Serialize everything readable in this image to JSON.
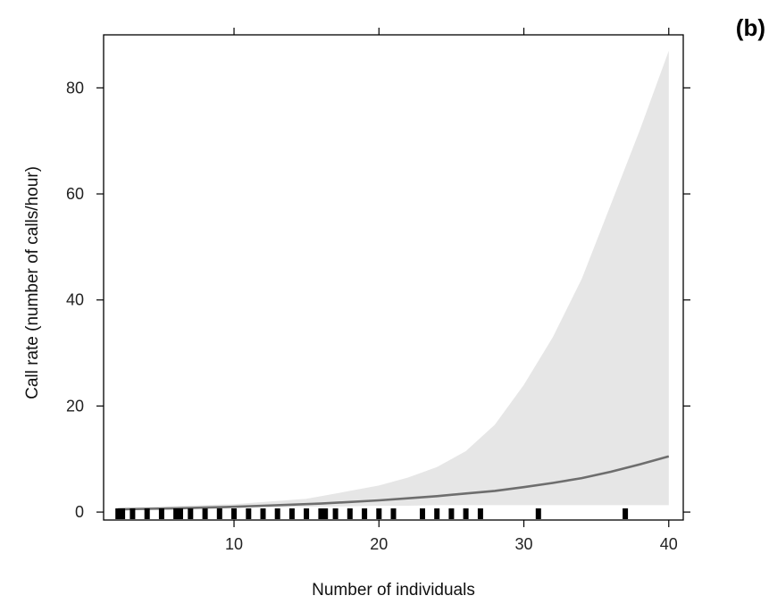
{
  "panel_label": "(b)",
  "chart_data": {
    "type": "line",
    "xlabel": "Number of individuals",
    "ylabel": "Call rate (number of calls/hour)",
    "xlim": [
      1,
      41
    ],
    "ylim": [
      -1.5,
      90
    ],
    "x_ticks": [
      10,
      20,
      30,
      40
    ],
    "x_tick_labels": [
      "10",
      "20",
      "30",
      "40"
    ],
    "y_ticks": [
      0,
      20,
      40,
      60,
      80
    ],
    "y_tick_labels": [
      "0",
      "20",
      "40",
      "60",
      "80"
    ],
    "grid": false,
    "colors": {
      "line": "#6e6e6e",
      "band": "#e6e6e6",
      "rug": "#000000"
    },
    "series": [
      {
        "x": [
          2,
          4,
          6,
          8,
          10,
          12,
          14,
          16,
          18,
          20,
          22,
          24,
          26,
          28,
          30,
          32,
          34,
          36,
          38,
          40
        ],
        "y": [
          0.5,
          0.6,
          0.7,
          0.85,
          1.0,
          1.2,
          1.4,
          1.6,
          1.9,
          2.2,
          2.6,
          3.0,
          3.5,
          4.0,
          4.7,
          5.5,
          6.4,
          7.6,
          9.0,
          10.5
        ]
      }
    ],
    "confidence_band": {
      "x": [
        2,
        10,
        15,
        18,
        20,
        22,
        24,
        26,
        28,
        30,
        32,
        34,
        36,
        38,
        40
      ],
      "lower": [
        0.3,
        0.8,
        1.0,
        1.1,
        1.2,
        1.2,
        1.3,
        1.3,
        1.3,
        1.3,
        1.3,
        1.3,
        1.3,
        1.3,
        1.3
      ],
      "upper": [
        0.8,
        1.5,
        2.5,
        4.0,
        5.0,
        6.5,
        8.5,
        11.5,
        16.5,
        24.0,
        33.0,
        44.0,
        58.0,
        72.0,
        87.0
      ]
    },
    "rug_x": [
      2,
      2.3,
      3,
      4,
      5,
      6,
      6.3,
      7,
      8,
      9,
      10,
      11,
      12,
      13,
      14,
      15,
      16,
      16.3,
      17,
      18,
      19,
      20,
      21,
      23,
      24,
      25,
      26,
      27,
      31,
      37
    ]
  }
}
